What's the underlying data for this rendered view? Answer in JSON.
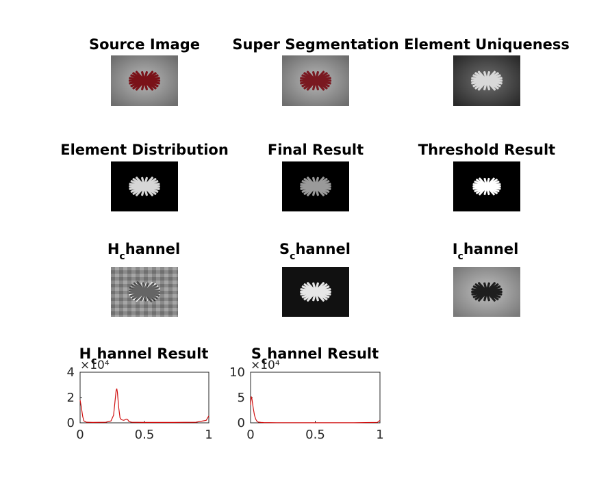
{
  "figure": {
    "panels": [
      {
        "title": "Source Image"
      },
      {
        "title": "Super Segmentation"
      },
      {
        "title": "Element Uniqueness"
      },
      {
        "title": "Element Distribution"
      },
      {
        "title": "Final Result"
      },
      {
        "title": "Threshold Result"
      },
      {
        "title_main": "H",
        "title_sub": "c",
        "title_rest": "hannel"
      },
      {
        "title_main": "S",
        "title_sub": "c",
        "title_rest": "hannel"
      },
      {
        "title_main": "I",
        "title_sub": "c",
        "title_rest": "hannel"
      }
    ]
  },
  "chart_data": [
    {
      "type": "line",
      "title_main": "H",
      "title_sub": "c",
      "title_rest": "hannel Result",
      "exponent": "×10⁴",
      "xlim": [
        0,
        1
      ],
      "ylim": [
        0,
        4
      ],
      "xticks": [
        "0",
        "0.5",
        "1"
      ],
      "yticks": [
        "0",
        "2",
        "4"
      ],
      "color": "#d01010",
      "series": [
        {
          "x": [
            0,
            0.01,
            0.02,
            0.03,
            0.05,
            0.1,
            0.2,
            0.24,
            0.26,
            0.27,
            0.28,
            0.285,
            0.29,
            0.3,
            0.31,
            0.32,
            0.34,
            0.36,
            0.37,
            0.38,
            0.4,
            0.5,
            0.7,
            0.9,
            0.98,
            1.0
          ],
          "y": [
            1.8,
            1.2,
            0.5,
            0.15,
            0.05,
            0.03,
            0.05,
            0.15,
            0.6,
            1.6,
            2.55,
            2.7,
            2.4,
            1.2,
            0.4,
            0.25,
            0.2,
            0.3,
            0.25,
            0.1,
            0.05,
            0.03,
            0.03,
            0.05,
            0.2,
            0.55
          ]
        }
      ]
    },
    {
      "type": "line",
      "title_main": "S",
      "title_sub": "c",
      "title_rest": "hannel Result",
      "exponent": "×10⁴",
      "xlim": [
        0,
        1
      ],
      "ylim": [
        0,
        10
      ],
      "xticks": [
        "0",
        "0.5",
        "1"
      ],
      "yticks": [
        "0",
        "5",
        "10"
      ],
      "color": "#d01010",
      "series": [
        {
          "x": [
            0,
            0.005,
            0.01,
            0.02,
            0.03,
            0.04,
            0.05,
            0.06,
            0.08,
            0.1,
            0.2,
            0.5,
            0.8,
            0.98,
            1.0
          ],
          "y": [
            3.5,
            5.2,
            4.8,
            3.0,
            1.5,
            0.7,
            0.3,
            0.15,
            0.08,
            0.05,
            0.03,
            0.02,
            0.02,
            0.1,
            0.5
          ]
        }
      ]
    }
  ]
}
